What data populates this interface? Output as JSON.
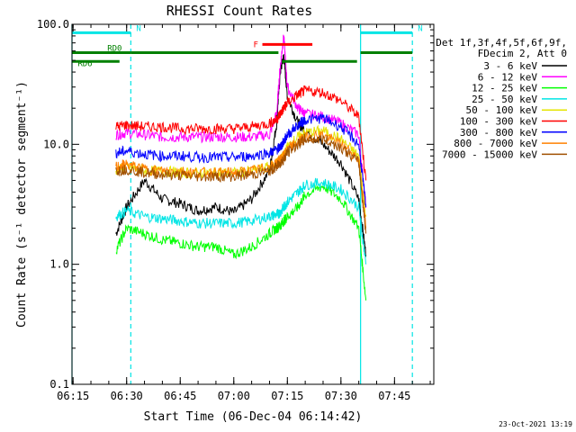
{
  "chart_data": {
    "type": "line",
    "title": "RHESSI Count Rates",
    "xlabel": "Start Time (06-Dec-04 06:14:42)",
    "ylabel": "Count Rate (s⁻¹ detector segment⁻¹)",
    "y_scale": "log",
    "ylim": [
      0.1,
      100.0
    ],
    "xlim": [
      "06:14:42",
      "07:56:00"
    ],
    "x_tick_labels": [
      "06:15",
      "06:30",
      "06:45",
      "07:00",
      "07:15",
      "07:30",
      "07:45"
    ],
    "y_tick_labels": [
      "0.1",
      "1.0",
      "10.0",
      "100.0"
    ],
    "legend_title": [
      "Det 1f,3f,4f,5f,6f,9f,",
      "FDecim 2, Att 0"
    ],
    "legend_position": "right",
    "footer": "23-Oct-2021 13:19",
    "annotations": [
      {
        "label": "N",
        "start": "06:14:42",
        "end": "06:31:10",
        "level": 85,
        "color": "#00e5e5"
      },
      {
        "label": "N",
        "start": "07:35:30",
        "end": "07:50:00",
        "level": 85,
        "color": "#00e5e5"
      },
      {
        "label": "RD0",
        "start": "06:14:42",
        "end": "06:31:10",
        "level": 58,
        "color": "#008000"
      },
      {
        "label": "",
        "start": "06:31:10",
        "end": "07:12:30",
        "level": 58,
        "color": "#008000"
      },
      {
        "label": "RD6",
        "start": "06:14:42",
        "end": "06:28:00",
        "level": 49,
        "color": "#008000"
      },
      {
        "label": "",
        "start": "07:13:30",
        "end": "07:34:30",
        "level": 49,
        "color": "#008000"
      },
      {
        "label": "",
        "start": "07:35:30",
        "end": "07:50:00",
        "level": 58,
        "color": "#008000"
      },
      {
        "label": "F",
        "start": "07:08:00",
        "end": "07:22:00",
        "level": 68,
        "color": "#ff0000"
      }
    ],
    "vertical_lines": [
      {
        "time": "06:14:42",
        "style": "solid",
        "color": "#00e5e5"
      },
      {
        "time": "06:31:10",
        "style": "dashed",
        "color": "#00e5e5"
      },
      {
        "time": "07:35:30",
        "style": "solid",
        "color": "#00e5e5"
      },
      {
        "time": "07:50:00",
        "style": "dashed",
        "color": "#00e5e5"
      }
    ],
    "x": [
      "06:27",
      "06:30",
      "06:35",
      "06:40",
      "06:45",
      "06:50",
      "06:55",
      "07:00",
      "07:05",
      "07:10",
      "07:12",
      "07:13",
      "07:14",
      "07:15",
      "07:18",
      "07:20",
      "07:25",
      "07:30",
      "07:35",
      "07:37"
    ],
    "series": [
      {
        "name": "3 - 6 keV",
        "color": "#000000",
        "values": [
          1.8,
          3.0,
          5.0,
          3.5,
          3.2,
          2.8,
          3.0,
          2.7,
          3.5,
          6.0,
          15,
          40,
          55,
          25,
          15,
          13,
          10,
          7.0,
          3.5,
          1.2
        ]
      },
      {
        "name": "6 - 12 keV",
        "color": "#ff00ff",
        "values": [
          12,
          12.5,
          12,
          11.5,
          11.5,
          11.5,
          11.5,
          11.5,
          11.5,
          12,
          18,
          45,
          80,
          30,
          20,
          18,
          17,
          15,
          12,
          3.0
        ]
      },
      {
        "name": "12 - 25 keV",
        "color": "#00ff00",
        "values": [
          1.3,
          2.0,
          1.8,
          1.6,
          1.5,
          1.4,
          1.4,
          1.2,
          1.4,
          1.8,
          2.0,
          2.1,
          2.3,
          2.5,
          3.0,
          3.8,
          4.5,
          3.5,
          2.0,
          0.5
        ]
      },
      {
        "name": "25 - 50 keV",
        "color": "#00e5e5",
        "values": [
          2.5,
          2.8,
          2.5,
          2.4,
          2.3,
          2.2,
          2.2,
          2.2,
          2.3,
          2.5,
          2.6,
          2.7,
          3.0,
          3.3,
          4.0,
          4.6,
          4.8,
          4.2,
          3.0,
          1.0
        ]
      },
      {
        "name": "50 - 100 keV",
        "color": "#e5e500",
        "values": [
          6.0,
          6.5,
          6.0,
          6.0,
          5.8,
          5.8,
          5.8,
          5.8,
          6.0,
          6.5,
          7.0,
          7.5,
          8.0,
          9.5,
          11.5,
          12.5,
          13,
          11,
          8.0,
          2.5
        ]
      },
      {
        "name": "100 - 300 keV",
        "color": "#ff0000",
        "values": [
          14,
          14.5,
          14,
          14,
          13.5,
          13.5,
          13.5,
          13.5,
          14,
          15,
          16,
          18,
          20,
          22,
          26,
          28,
          27,
          23,
          17,
          5.0
        ]
      },
      {
        "name": "300 - 800 keV",
        "color": "#0000ff",
        "values": [
          8.5,
          8.8,
          8.3,
          8.0,
          8.0,
          7.8,
          7.8,
          7.8,
          8.0,
          8.5,
          9.0,
          9.5,
          10.5,
          12,
          14.5,
          16,
          16.5,
          14,
          10,
          3.0
        ]
      },
      {
        "name": "800 - 7000 keV",
        "color": "#ff8000",
        "values": [
          6.5,
          6.8,
          6.2,
          6.0,
          6.0,
          5.8,
          5.8,
          5.8,
          6.0,
          6.5,
          7.0,
          7.5,
          8.0,
          9.0,
          10.5,
          11.5,
          12,
          10,
          7.5,
          2.0
        ]
      },
      {
        "name": "7000 - 15000 keV",
        "color": "#a05000",
        "values": [
          6.0,
          6.2,
          5.8,
          5.6,
          5.5,
          5.4,
          5.4,
          5.4,
          5.6,
          6.0,
          6.5,
          7.0,
          7.5,
          8.5,
          10,
          11,
          11,
          9.5,
          7.0,
          1.8
        ]
      }
    ]
  }
}
